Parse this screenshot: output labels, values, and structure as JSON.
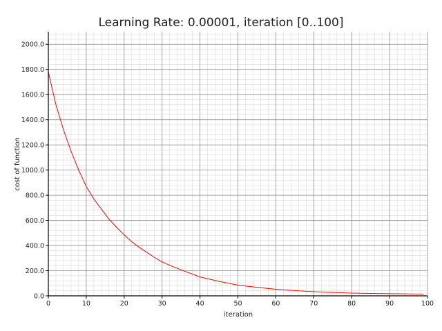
{
  "chart_data": {
    "type": "line",
    "title": "Learning Rate: 0.00001, iteration [0..100]",
    "xlabel": "iteration",
    "ylabel": "cost of function",
    "xlim": [
      0,
      100
    ],
    "ylim": [
      0,
      2100
    ],
    "x_ticks": [
      "0",
      "10",
      "20",
      "30",
      "40",
      "50",
      "60",
      "70",
      "80",
      "90",
      "100"
    ],
    "y_ticks": [
      "0.0",
      "200.0",
      "400.0",
      "600.0",
      "800.0",
      "1000.0",
      "1200.0",
      "1400.0",
      "1600.0",
      "1800.0",
      "2000.0"
    ],
    "grid": true,
    "series": [
      {
        "color": "#ff0000",
        "x": [
          0,
          1,
          2,
          3,
          4,
          5,
          6,
          7,
          8,
          9,
          10,
          12,
          14,
          16,
          18,
          20,
          22,
          24,
          26,
          28,
          30,
          33,
          36,
          40,
          45,
          50,
          55,
          60,
          65,
          70,
          75,
          80,
          85,
          90,
          95,
          99
        ],
        "y": [
          1780,
          1650,
          1520,
          1420,
          1320,
          1235,
          1150,
          1075,
          1000,
          935,
          870,
          770,
          690,
          610,
          545,
          485,
          430,
          385,
          345,
          305,
          270,
          230,
          195,
          150,
          115,
          85,
          68,
          52,
          42,
          33,
          27,
          22,
          19,
          17,
          15,
          14
        ]
      }
    ]
  }
}
